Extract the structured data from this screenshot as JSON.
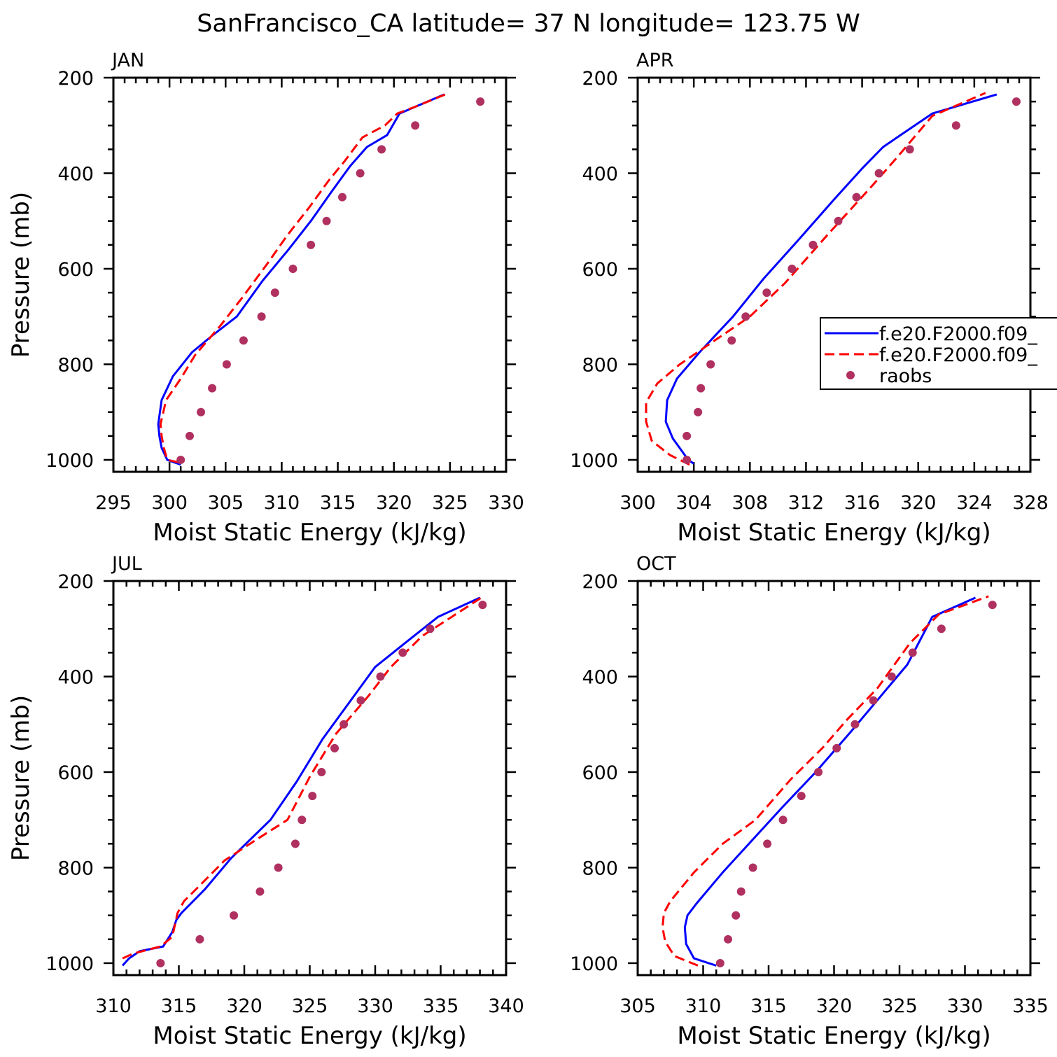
{
  "title": "SanFrancisco_CA  latitude= 37 N longitude= 123.75 W",
  "colors": {
    "model1": "#0000ff",
    "model2": "#ff0000",
    "raobs": "#b03060",
    "axis": "#000000"
  },
  "legend": {
    "panel": "APR",
    "entries": [
      {
        "label": "f.e20.F2000.f09_",
        "style": "solid",
        "color": "#0000ff"
      },
      {
        "label": "f.e20.F2000.f09_",
        "style": "dashed",
        "color": "#ff0000"
      },
      {
        "label": "raobs",
        "style": "dot",
        "color": "#b03060"
      }
    ]
  },
  "chart_data": [
    {
      "type": "line",
      "panel_label": "JAN",
      "xlabel": "Moist Static Energy (kJ/kg)",
      "ylabel": "Pressure (mb)",
      "xlim": [
        295,
        330
      ],
      "xticks": [
        295,
        300,
        305,
        310,
        315,
        320,
        325,
        330
      ],
      "ylim": [
        1025,
        200
      ],
      "yticks": [
        200,
        400,
        600,
        800,
        1000
      ],
      "series": [
        {
          "style": "solid",
          "color": "#0000ff",
          "x": [
            301.0,
            299.8,
            299.3,
            299.1,
            299.0,
            299.3,
            300.3,
            302.0,
            303.8,
            306.0,
            308.3,
            310.6,
            312.6,
            314.4,
            316.1,
            317.6,
            319.4,
            320.5,
            322.0,
            324.5
          ],
          "y": [
            1010,
            1000,
            975,
            950,
            925,
            875,
            825,
            775,
            740,
            700,
            625,
            560,
            500,
            440,
            385,
            345,
            320,
            275,
            260,
            235
          ]
        },
        {
          "style": "dashed",
          "color": "#ff0000",
          "x": [
            300.8,
            299.8,
            299.5,
            299.3,
            299.2,
            299.7,
            301.0,
            302.3,
            304.5,
            306.5,
            308.7,
            310.5,
            312.5,
            314.2,
            315.6,
            317.2,
            319.2,
            320.3,
            322.0,
            324.9
          ],
          "y": [
            1005,
            1000,
            975,
            950,
            925,
            875,
            830,
            780,
            720,
            660,
            590,
            530,
            470,
            415,
            375,
            325,
            300,
            275,
            260,
            232
          ]
        },
        {
          "style": "dot",
          "color": "#b03060",
          "x": [
            301.0,
            301.8,
            302.8,
            303.8,
            305.1,
            306.6,
            308.2,
            309.4,
            311.0,
            312.6,
            314.0,
            315.4,
            317.0,
            318.9,
            321.9,
            327.7
          ],
          "y": [
            1000,
            950,
            900,
            850,
            800,
            750,
            700,
            650,
            600,
            550,
            500,
            450,
            400,
            350,
            300,
            250
          ]
        }
      ]
    },
    {
      "type": "line",
      "panel_label": "APR",
      "xlabel": "Moist Static Energy (kJ/kg)",
      "ylabel": "",
      "xlim": [
        300,
        328
      ],
      "xticks": [
        300,
        304,
        308,
        312,
        316,
        320,
        324,
        328
      ],
      "ylim": [
        1025,
        200
      ],
      "yticks": [
        200,
        400,
        600,
        800,
        1000
      ],
      "series": [
        {
          "style": "solid",
          "color": "#0000ff",
          "x": [
            304.0,
            303.6,
            302.5,
            302.0,
            302.1,
            302.8,
            304.4,
            306.8,
            309.0,
            311.3,
            314.0,
            316.0,
            317.5,
            318.5,
            321.0,
            325.6
          ],
          "y": [
            1008,
            1000,
            955,
            920,
            875,
            830,
            775,
            700,
            620,
            545,
            455,
            390,
            345,
            325,
            275,
            235
          ]
        },
        {
          "style": "dashed",
          "color": "#ff0000",
          "x": [
            303.7,
            302.3,
            301.0,
            300.6,
            300.6,
            301.4,
            303.0,
            305.5,
            308.0,
            310.5,
            313.5,
            316.6,
            318.4,
            321.0,
            324.8
          ],
          "y": [
            1010,
            990,
            960,
            920,
            880,
            840,
            800,
            750,
            700,
            630,
            530,
            430,
            370,
            280,
            232
          ]
        },
        {
          "style": "dot",
          "color": "#b03060",
          "x": [
            303.5,
            303.5,
            304.3,
            304.5,
            305.2,
            306.7,
            307.7,
            309.2,
            311.0,
            312.5,
            314.3,
            315.6,
            317.2,
            319.4,
            322.7,
            327.0
          ],
          "y": [
            1000,
            950,
            900,
            850,
            800,
            750,
            700,
            650,
            600,
            550,
            500,
            450,
            400,
            350,
            300,
            250
          ]
        }
      ]
    },
    {
      "type": "line",
      "panel_label": "JUL",
      "xlabel": "Moist Static Energy (kJ/kg)",
      "ylabel": "Pressure (mb)",
      "xlim": [
        310,
        340
      ],
      "xticks": [
        310,
        315,
        320,
        325,
        330,
        335,
        340
      ],
      "ylim": [
        1025,
        200
      ],
      "yticks": [
        200,
        400,
        600,
        800,
        1000
      ],
      "series": [
        {
          "style": "solid",
          "color": "#0000ff",
          "x": [
            310.7,
            311.2,
            312.0,
            313.8,
            314.5,
            314.8,
            315.2,
            317.0,
            319.0,
            322.0,
            324.0,
            326.0,
            328.0,
            330.0,
            332.5,
            334.8,
            338.0
          ],
          "y": [
            1005,
            990,
            975,
            965,
            935,
            910,
            895,
            845,
            780,
            700,
            620,
            530,
            455,
            380,
            325,
            275,
            235
          ]
        },
        {
          "style": "dashed",
          "color": "#ff0000",
          "x": [
            310.7,
            311.5,
            313.6,
            314.5,
            314.9,
            315.4,
            316.5,
            318.5,
            321.0,
            323.3,
            325.0,
            327.0,
            329.5,
            331.2,
            333.6,
            338.1
          ],
          "y": [
            990,
            980,
            965,
            945,
            895,
            870,
            840,
            785,
            740,
            700,
            610,
            520,
            440,
            380,
            315,
            235
          ]
        },
        {
          "style": "dot",
          "color": "#b03060",
          "x": [
            313.6,
            316.6,
            319.2,
            321.2,
            322.6,
            323.9,
            324.4,
            325.2,
            325.9,
            326.9,
            327.6,
            328.9,
            330.4,
            332.1,
            334.2,
            338.2
          ],
          "y": [
            1000,
            950,
            900,
            850,
            800,
            750,
            700,
            650,
            600,
            550,
            500,
            450,
            400,
            350,
            300,
            250
          ]
        }
      ]
    },
    {
      "type": "line",
      "panel_label": "OCT",
      "xlabel": "Moist Static Energy (kJ/kg)",
      "ylabel": "",
      "xlim": [
        305,
        335
      ],
      "xticks": [
        305,
        310,
        315,
        320,
        325,
        330,
        335
      ],
      "ylim": [
        1025,
        200
      ],
      "yticks": [
        200,
        400,
        600,
        800,
        1000
      ],
      "series": [
        {
          "style": "solid",
          "color": "#0000ff",
          "x": [
            311.0,
            309.3,
            308.7,
            308.6,
            308.8,
            309.5,
            311.5,
            313.5,
            316.0,
            318.6,
            321.3,
            323.6,
            325.6,
            327.5,
            330.8
          ],
          "y": [
            1005,
            990,
            960,
            925,
            900,
            875,
            810,
            750,
            675,
            600,
            515,
            440,
            375,
            275,
            235
          ]
        },
        {
          "style": "dashed",
          "color": "#ff0000",
          "x": [
            309.6,
            307.8,
            307.1,
            306.9,
            307.0,
            307.5,
            309.3,
            311.5,
            314.0,
            316.7,
            319.1,
            321.0,
            323.3,
            325.8,
            328.0,
            331.8
          ],
          "y": [
            1005,
            985,
            955,
            925,
            895,
            870,
            810,
            750,
            700,
            615,
            550,
            490,
            425,
            330,
            270,
            232
          ]
        },
        {
          "style": "dot",
          "color": "#b03060",
          "x": [
            311.3,
            311.9,
            312.5,
            312.9,
            313.8,
            314.9,
            316.1,
            317.5,
            318.8,
            320.2,
            321.6,
            323.0,
            324.4,
            326.0,
            328.2,
            332.1
          ],
          "y": [
            1000,
            950,
            900,
            850,
            800,
            750,
            700,
            650,
            600,
            550,
            500,
            450,
            400,
            350,
            300,
            250
          ]
        }
      ]
    }
  ]
}
